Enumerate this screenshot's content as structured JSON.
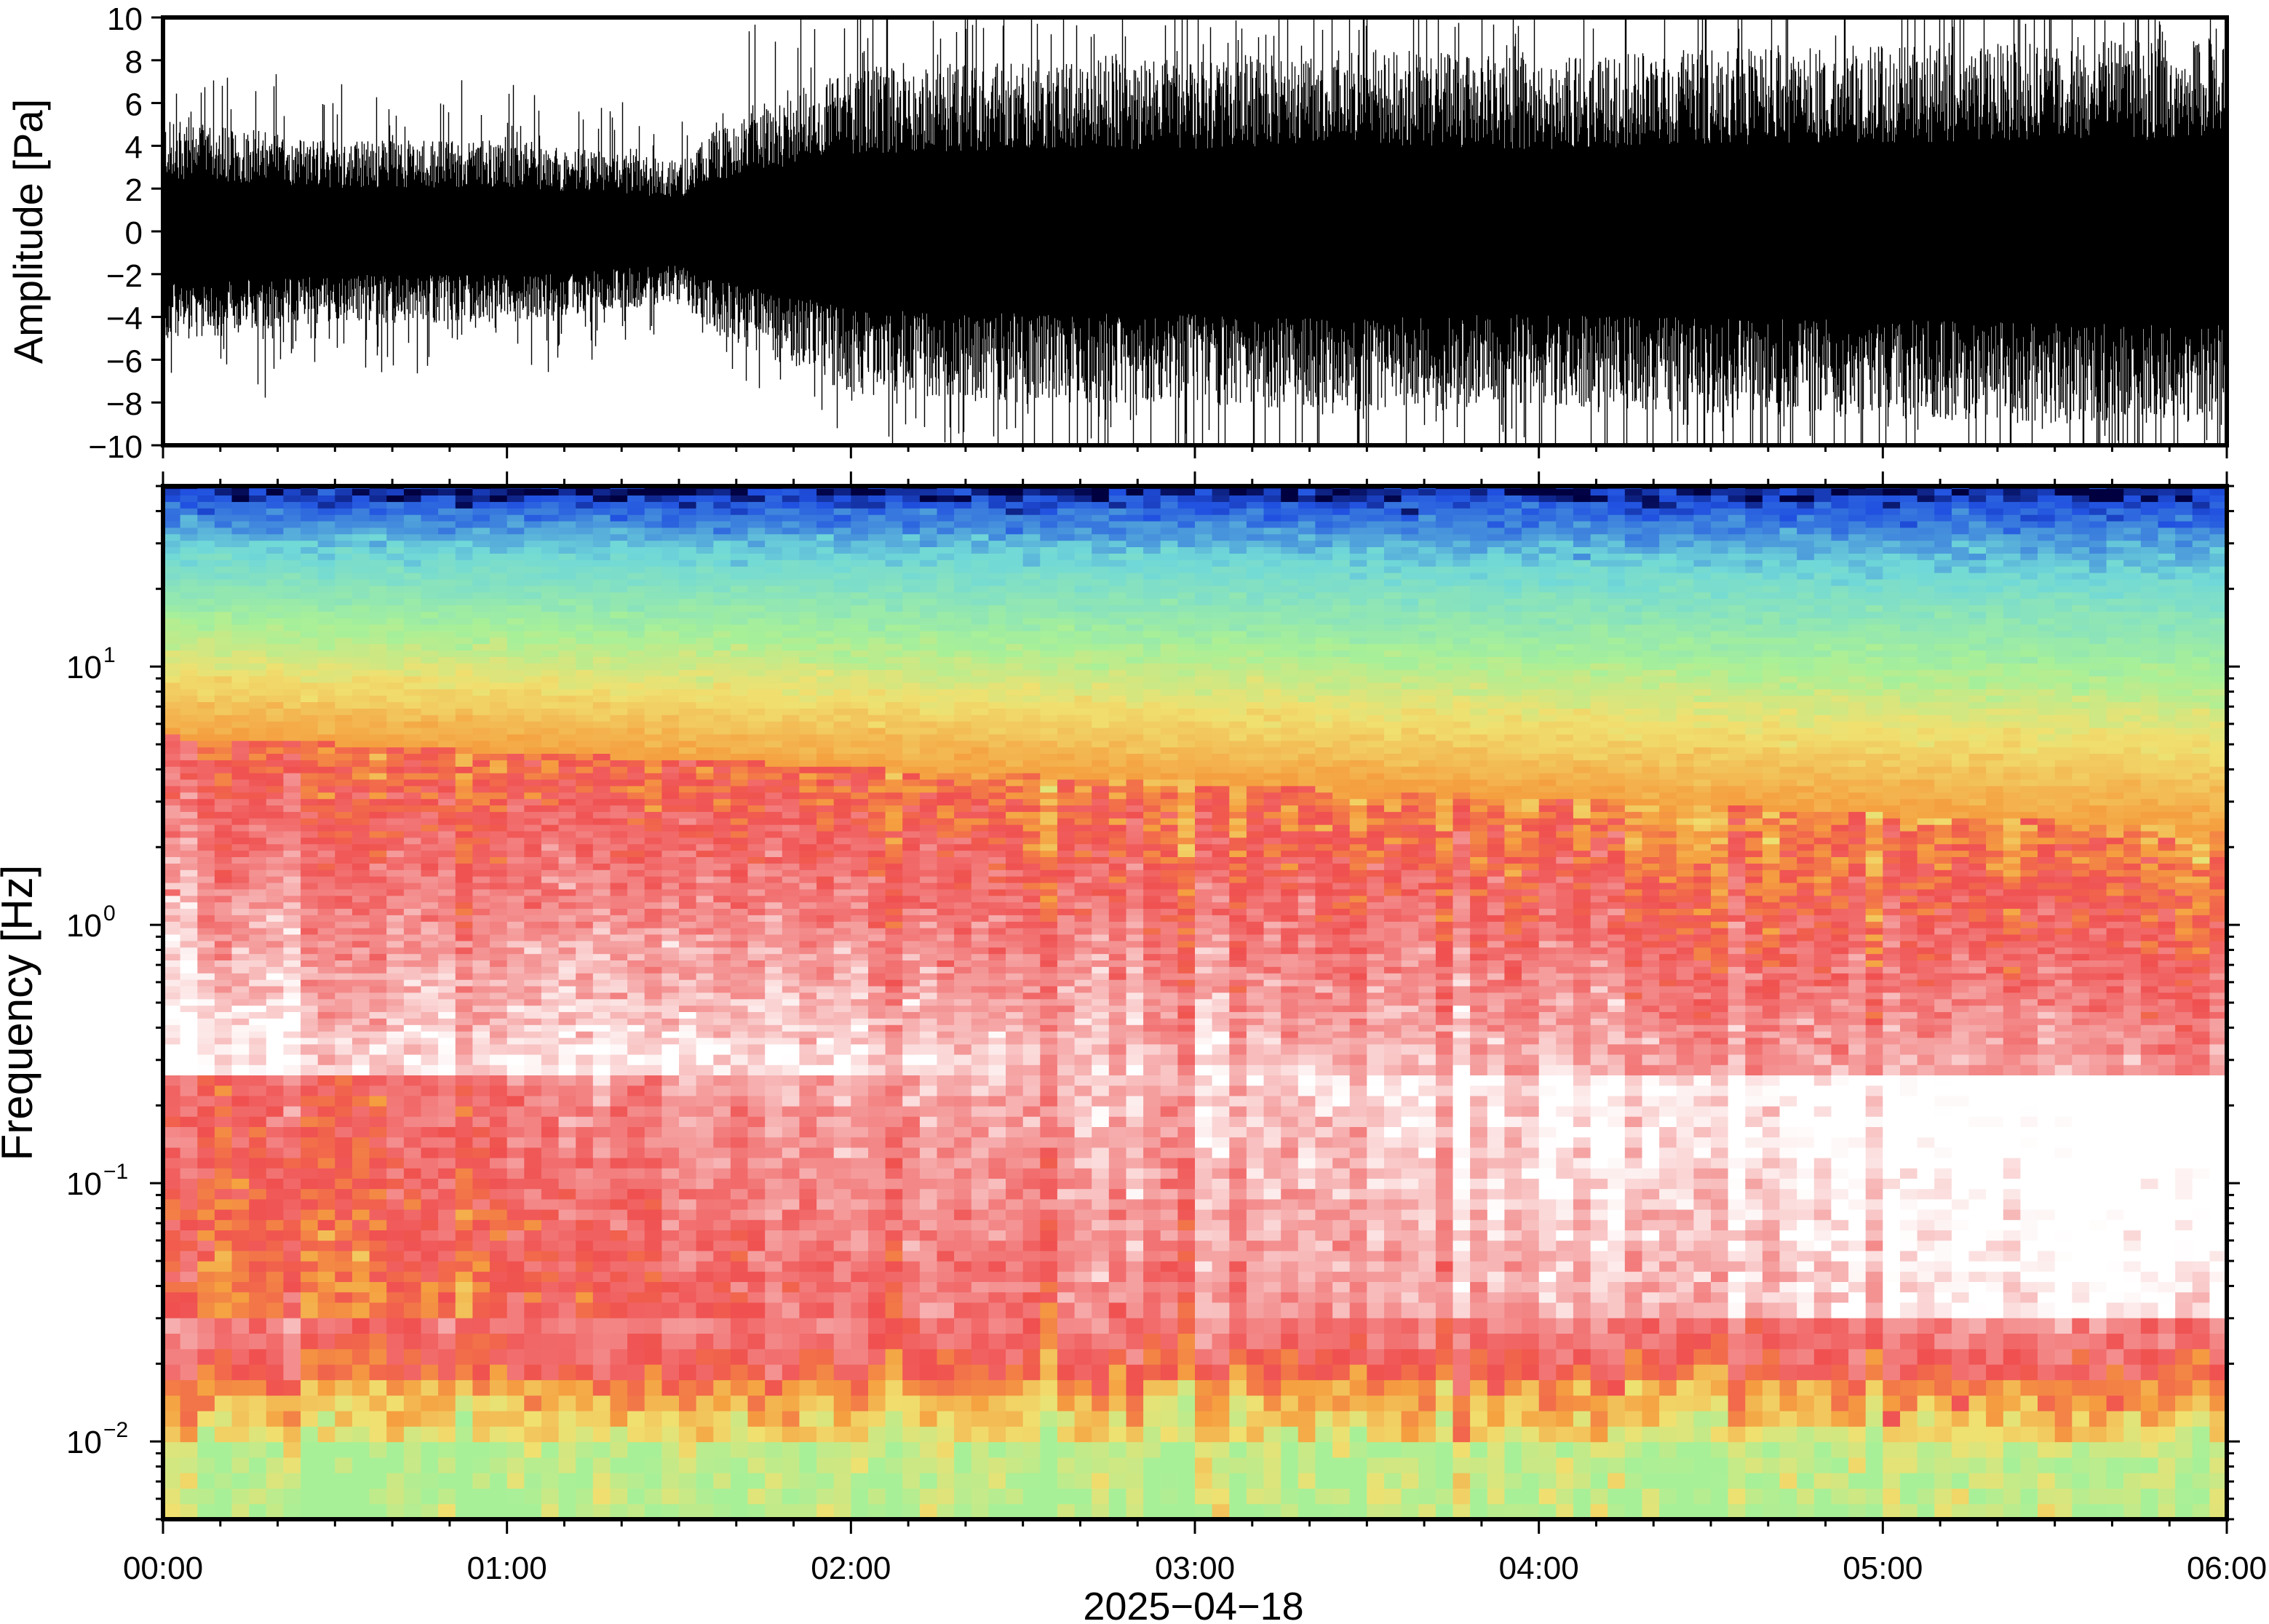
{
  "chart_data": [
    {
      "type": "line",
      "panel": "waveform",
      "ylabel": "Amplitude [Pa]",
      "ylim": [
        -10,
        10
      ],
      "yticks": [
        -10,
        -8,
        -6,
        -4,
        -2,
        0,
        2,
        4,
        6,
        8,
        10
      ],
      "ytick_labels": [
        "−10",
        "−8",
        "−6",
        "−4",
        "−2",
        "0",
        "2",
        "4",
        "6",
        "8",
        "10"
      ],
      "xlim_hours": [
        0,
        6
      ],
      "envelope_hours": [
        0,
        0.5,
        1,
        1.5,
        1.6,
        2,
        2.5,
        3,
        3.5,
        4,
        4.5,
        5,
        5.5,
        6
      ],
      "envelope_pa": [
        5.5,
        4.5,
        4.5,
        3.5,
        5,
        8,
        8.5,
        8.5,
        9,
        8.5,
        9,
        9.2,
        9.5,
        9.5
      ]
    },
    {
      "type": "heatmap",
      "panel": "spectrogram",
      "ylabel": "Frequency [Hz]",
      "yscale": "log",
      "ylim": [
        0.005,
        50
      ],
      "yticks": [
        {
          "base": "10",
          "exp": "1",
          "value": 10
        },
        {
          "base": "10",
          "exp": "0",
          "value": 1
        },
        {
          "base": "10",
          "exp": "−1",
          "value": 0.1
        },
        {
          "base": "10",
          "exp": "−2",
          "value": 0.01
        }
      ],
      "xlabel": "2025−04−18",
      "xticks": [
        "00:00",
        "01:00",
        "02:00",
        "03:00",
        "04:00",
        "05:00",
        "06:00"
      ],
      "xlim_hours": [
        0,
        6
      ],
      "colors": {
        "low": "#ffffff",
        "pink": "#f5a0a0",
        "red": "#f05050",
        "orange": "#f5a040",
        "yellow": "#f0e070",
        "green": "#a8f098",
        "cyan": "#70d8d8",
        "blue": "#2050e0",
        "navy": "#000040"
      }
    }
  ]
}
